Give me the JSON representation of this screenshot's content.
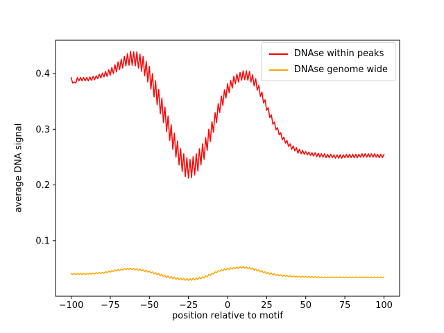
{
  "chart_data": {
    "type": "line",
    "title": "",
    "xlabel": "position relative to motif",
    "ylabel": "average DNA signal",
    "xlim": [
      -110,
      110
    ],
    "ylim": [
      0.0,
      0.46
    ],
    "xticks": [
      -100,
      -75,
      -50,
      -25,
      0,
      25,
      50,
      75,
      100
    ],
    "yticks": [
      0.1,
      0.2,
      0.3,
      0.4
    ],
    "grid": false,
    "legend_position": "upper right",
    "x_start": -100,
    "x_step": 1,
    "series": [
      {
        "name": "DNAse within peaks",
        "color": "#ff0000",
        "values": [
          0.393,
          0.383,
          0.385,
          0.383,
          0.393,
          0.387,
          0.393,
          0.387,
          0.393,
          0.387,
          0.393,
          0.387,
          0.394,
          0.388,
          0.395,
          0.389,
          0.396,
          0.391,
          0.399,
          0.392,
          0.401,
          0.394,
          0.404,
          0.395,
          0.407,
          0.397,
          0.411,
          0.4,
          0.416,
          0.403,
          0.421,
          0.407,
          0.426,
          0.41,
          0.431,
          0.414,
          0.436,
          0.415,
          0.44,
          0.415,
          0.439,
          0.414,
          0.439,
          0.41,
          0.435,
          0.404,
          0.431,
          0.396,
          0.422,
          0.385,
          0.413,
          0.372,
          0.4,
          0.358,
          0.387,
          0.344,
          0.372,
          0.328,
          0.356,
          0.312,
          0.34,
          0.296,
          0.324,
          0.28,
          0.308,
          0.264,
          0.293,
          0.25,
          0.279,
          0.236,
          0.265,
          0.224,
          0.256,
          0.215,
          0.249,
          0.212,
          0.246,
          0.213,
          0.251,
          0.218,
          0.256,
          0.225,
          0.265,
          0.236,
          0.274,
          0.246,
          0.285,
          0.262,
          0.3,
          0.278,
          0.314,
          0.295,
          0.33,
          0.312,
          0.346,
          0.33,
          0.36,
          0.343,
          0.371,
          0.356,
          0.382,
          0.366,
          0.388,
          0.374,
          0.395,
          0.382,
          0.399,
          0.385,
          0.402,
          0.388,
          0.405,
          0.389,
          0.405,
          0.388,
          0.404,
          0.385,
          0.398,
          0.378,
          0.391,
          0.37,
          0.379,
          0.359,
          0.367,
          0.347,
          0.353,
          0.334,
          0.339,
          0.321,
          0.326,
          0.309,
          0.313,
          0.299,
          0.303,
          0.29,
          0.294,
          0.281,
          0.286,
          0.275,
          0.28,
          0.269,
          0.274,
          0.264,
          0.27,
          0.261,
          0.267,
          0.257,
          0.264,
          0.256,
          0.262,
          0.255,
          0.26,
          0.254,
          0.259,
          0.253,
          0.258,
          0.252,
          0.258,
          0.251,
          0.257,
          0.25,
          0.256,
          0.25,
          0.256,
          0.249,
          0.255,
          0.249,
          0.255,
          0.249,
          0.254,
          0.248,
          0.254,
          0.248,
          0.254,
          0.248,
          0.254,
          0.249,
          0.255,
          0.249,
          0.255,
          0.249,
          0.255,
          0.249,
          0.255,
          0.249,
          0.255,
          0.25,
          0.256,
          0.25,
          0.256,
          0.25,
          0.256,
          0.25,
          0.256,
          0.25,
          0.256,
          0.25,
          0.255,
          0.249,
          0.255,
          0.249,
          0.255
        ]
      },
      {
        "name": "DNAse genome wide",
        "color": "#ffa500",
        "values": [
          0.041,
          0.039,
          0.041,
          0.039,
          0.041,
          0.039,
          0.041,
          0.039,
          0.041,
          0.039,
          0.041,
          0.0392,
          0.0414,
          0.0396,
          0.0418,
          0.04,
          0.0422,
          0.0404,
          0.0426,
          0.0408,
          0.043,
          0.0413,
          0.0442,
          0.0423,
          0.0452,
          0.0433,
          0.0462,
          0.0443,
          0.0472,
          0.0453,
          0.0482,
          0.0462,
          0.049,
          0.047,
          0.0498,
          0.0478,
          0.0502,
          0.0478,
          0.0502,
          0.0478,
          0.0502,
          0.0473,
          0.0495,
          0.0465,
          0.0487,
          0.0457,
          0.0478,
          0.0444,
          0.0466,
          0.0432,
          0.0454,
          0.0417,
          0.0439,
          0.0401,
          0.0423,
          0.0385,
          0.0409,
          0.0367,
          0.0393,
          0.0351,
          0.0377,
          0.0336,
          0.0366,
          0.0324,
          0.0354,
          0.0312,
          0.0344,
          0.0304,
          0.0336,
          0.0296,
          0.0328,
          0.029,
          0.0324,
          0.0286,
          0.032,
          0.0282,
          0.032,
          0.0286,
          0.0324,
          0.029,
          0.0328,
          0.03,
          0.0338,
          0.0312,
          0.035,
          0.0324,
          0.0366,
          0.035,
          0.039,
          0.0374,
          0.0414,
          0.0399,
          0.0437,
          0.0423,
          0.0461,
          0.0447,
          0.0479,
          0.0459,
          0.0491,
          0.0471,
          0.0503,
          0.048,
          0.0512,
          0.0488,
          0.052,
          0.0496,
          0.0526,
          0.05,
          0.053,
          0.0504,
          0.0534,
          0.0502,
          0.0526,
          0.0494,
          0.0518,
          0.0486,
          0.0507,
          0.0469,
          0.0491,
          0.0453,
          0.0475,
          0.0437,
          0.0459,
          0.0421,
          0.0443,
          0.0405,
          0.0428,
          0.0394,
          0.0416,
          0.0382,
          0.0404,
          0.0374,
          0.0394,
          0.0366,
          0.0386,
          0.0358,
          0.0379,
          0.0355,
          0.0375,
          0.0351,
          0.0371,
          0.0348,
          0.0366,
          0.0344,
          0.0362,
          0.034,
          0.036,
          0.034,
          0.036,
          0.034,
          0.036,
          0.034,
          0.0357,
          0.0338,
          0.0355,
          0.0336,
          0.0353,
          0.0334,
          0.0351,
          0.0332,
          0.0349,
          0.0332,
          0.0348,
          0.0332,
          0.0348,
          0.0332,
          0.0348,
          0.0332,
          0.0348,
          0.0332,
          0.0348,
          0.0332,
          0.0348,
          0.0332,
          0.0348,
          0.0332,
          0.0348,
          0.0332,
          0.0348,
          0.0332,
          0.0348,
          0.0332,
          0.0348,
          0.0332,
          0.0348,
          0.0332,
          0.0348,
          0.0332,
          0.0348,
          0.0332,
          0.0348,
          0.0332,
          0.0348,
          0.0332,
          0.0348,
          0.0332,
          0.0348,
          0.0332,
          0.0348,
          0.0332,
          0.0348
        ]
      }
    ]
  }
}
